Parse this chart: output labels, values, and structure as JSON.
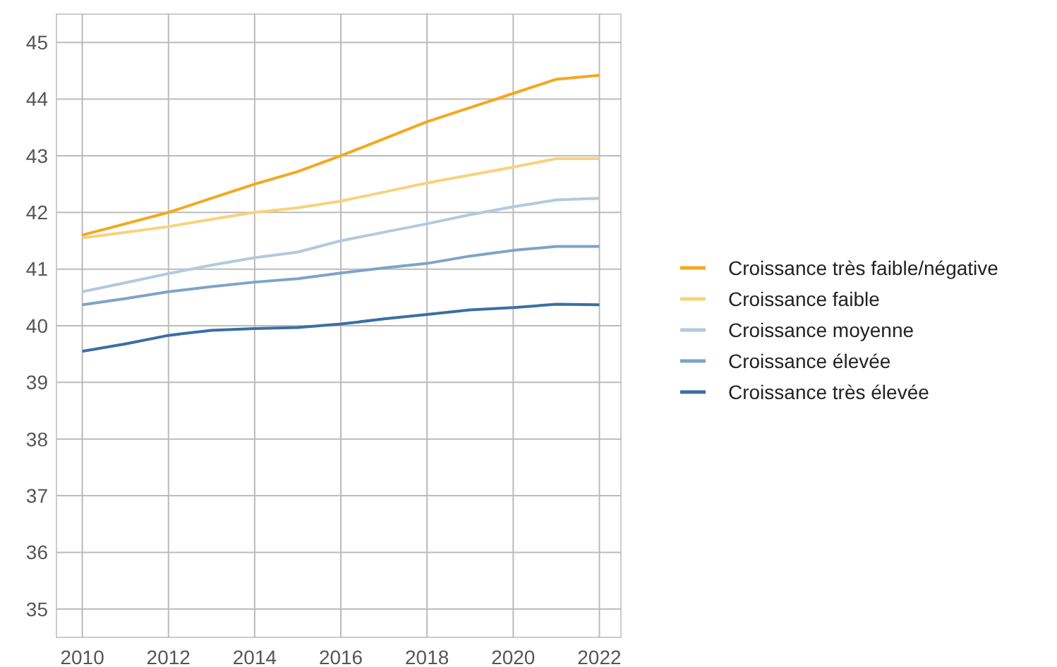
{
  "chart_data": {
    "type": "line",
    "x": [
      2010,
      2011,
      2012,
      2013,
      2014,
      2015,
      2016,
      2017,
      2018,
      2019,
      2020,
      2021,
      2022
    ],
    "series": [
      {
        "name": "Croissance très faible/négative",
        "color": "#f4a81d",
        "values": [
          41.6,
          41.8,
          42.0,
          42.25,
          42.5,
          42.72,
          43.0,
          43.3,
          43.6,
          43.85,
          44.1,
          44.35,
          44.42
        ]
      },
      {
        "name": "Croissance faible",
        "color": "#f9d27c",
        "values": [
          41.55,
          41.65,
          41.75,
          41.88,
          42.0,
          42.08,
          42.2,
          42.36,
          42.52,
          42.66,
          42.8,
          42.95,
          42.95
        ]
      },
      {
        "name": "Croissance moyenne",
        "color": "#b4c9de",
        "values": [
          40.6,
          40.76,
          40.92,
          41.07,
          41.2,
          41.3,
          41.5,
          41.65,
          41.8,
          41.96,
          42.1,
          42.22,
          42.25
        ]
      },
      {
        "name": "Croissance élevée",
        "color": "#7fa3c8",
        "values": [
          40.37,
          40.48,
          40.6,
          40.69,
          40.77,
          40.83,
          40.93,
          41.02,
          41.1,
          41.23,
          41.33,
          41.4,
          41.4
        ]
      },
      {
        "name": "Croissance très élevée",
        "color": "#3a6fa5",
        "values": [
          39.55,
          39.68,
          39.83,
          39.92,
          39.95,
          39.97,
          40.03,
          40.12,
          40.2,
          40.28,
          40.32,
          40.38,
          40.37
        ]
      }
    ],
    "xlim": [
      2009.4,
      2022.5
    ],
    "xticks": [
      2010,
      2012,
      2014,
      2016,
      2018,
      2020,
      2022
    ],
    "ylim": [
      34.5,
      45.5
    ],
    "yticks": [
      35,
      36,
      37,
      38,
      39,
      40,
      41,
      42,
      43,
      44,
      45
    ],
    "grid": true,
    "legend": "right",
    "marker": "none",
    "line_style": "solid"
  }
}
